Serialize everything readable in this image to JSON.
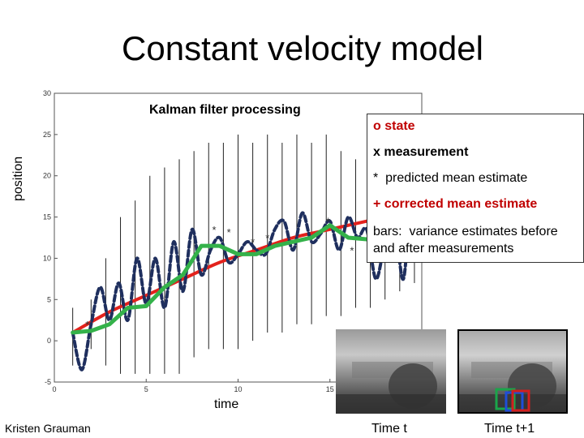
{
  "slide_title": "Constant velocity model",
  "credit": "Kristen Grauman",
  "legend": {
    "state": "o state",
    "measurement": "x measurement",
    "predicted": "*  predicted mean estimate",
    "corrected": "+ corrected mean estimate",
    "bars": "bars:  variance estimates before and after measurements"
  },
  "colors": {
    "state": "#e3221c",
    "corrected": "#34b24a",
    "measurement": "#1f2f5e",
    "legend_red": "#c00000",
    "arrow": "#e3221c",
    "box_green": "#1aa54a",
    "box_blue": "#1e4ed8",
    "box_red": "#d21f1f"
  },
  "photos": {
    "caption_t": "Time t",
    "caption_t1": "Time t+1"
  },
  "chart_data": {
    "type": "line",
    "title": "Kalman filter processing",
    "xlabel": "time",
    "ylabel": "position",
    "xlim": [
      0,
      20
    ],
    "ylim": [
      -5,
      30
    ],
    "xticks": [
      0,
      5,
      10,
      15
    ],
    "yticks": [
      -5,
      0,
      5,
      10,
      15,
      20,
      25,
      30
    ],
    "series": [
      {
        "key": "state",
        "x": [
          1,
          3,
          5,
          7,
          9,
          11,
          13,
          15,
          17,
          19,
          20
        ],
        "y": [
          1,
          3.5,
          5.5,
          7.5,
          9.5,
          11,
          12.5,
          13.5,
          14.5,
          15.5,
          16
        ]
      },
      {
        "key": "corrected",
        "x": [
          1,
          2,
          3,
          4,
          5,
          6,
          7,
          8,
          9,
          10,
          11,
          12,
          13,
          14,
          15,
          16,
          17,
          18,
          19,
          20
        ],
        "y": [
          1,
          1.2,
          2,
          4,
          4.2,
          6.5,
          8,
          11.5,
          11.5,
          10.5,
          10.5,
          11.5,
          12,
          12.5,
          14,
          12.5,
          12.3,
          12.3,
          12.8,
          14
        ]
      },
      {
        "key": "measurement",
        "x": [
          1,
          1.5,
          2,
          2.5,
          3,
          3.5,
          4,
          4.5,
          5,
          5.5,
          6,
          6.5,
          7,
          7.5,
          8,
          8.5,
          9,
          9.5,
          10,
          10.5,
          11,
          11.5,
          12,
          12.5,
          13,
          13.5,
          14,
          14.5,
          15,
          15.5,
          16,
          16.5,
          17,
          17.5,
          18,
          18.5,
          19,
          19.5,
          20
        ],
        "y": [
          1,
          -3.5,
          2,
          6.5,
          2.5,
          7,
          2.5,
          10,
          4.5,
          10,
          4,
          12,
          6,
          13.5,
          8,
          11,
          12.5,
          9.5,
          10.5,
          12,
          11,
          10.5,
          13.5,
          14.5,
          11,
          15.5,
          12,
          13,
          14.5,
          11,
          15,
          12.5,
          13.5,
          7.5,
          12,
          15,
          7.5,
          19.5,
          15
        ]
      }
    ],
    "bars": [
      {
        "x": 1,
        "low": -3,
        "high": 4
      },
      {
        "x": 2,
        "low": -1,
        "high": 5
      },
      {
        "x": 2.8,
        "low": -3,
        "high": 10
      },
      {
        "x": 3.6,
        "low": -4,
        "high": 15
      },
      {
        "x": 4.4,
        "low": -4,
        "high": 17
      },
      {
        "x": 5.2,
        "low": -4,
        "high": 20
      },
      {
        "x": 6,
        "low": -4,
        "high": 21
      },
      {
        "x": 6.8,
        "low": -4,
        "high": 22
      },
      {
        "x": 7.6,
        "low": -2,
        "high": 23
      },
      {
        "x": 8.4,
        "low": -1,
        "high": 24
      },
      {
        "x": 9.2,
        "low": -1,
        "high": 24
      },
      {
        "x": 10,
        "low": -1,
        "high": 25
      },
      {
        "x": 10.8,
        "low": 0,
        "high": 24
      },
      {
        "x": 11.6,
        "low": 1,
        "high": 25
      },
      {
        "x": 12.4,
        "low": 1,
        "high": 24
      },
      {
        "x": 13.2,
        "low": 2,
        "high": 25
      },
      {
        "x": 14,
        "low": 2,
        "high": 24
      },
      {
        "x": 14.8,
        "low": 3,
        "high": 25
      },
      {
        "x": 15.6,
        "low": 3,
        "high": 23
      },
      {
        "x": 16.4,
        "low": 4,
        "high": 22
      },
      {
        "x": 17.2,
        "low": 4,
        "high": 21
      },
      {
        "x": 18,
        "low": 5,
        "high": 20
      },
      {
        "x": 18.8,
        "low": 6,
        "high": 19
      },
      {
        "x": 19.6,
        "low": 7,
        "high": 18
      }
    ],
    "predicted_points": [
      {
        "x": 1.8,
        "y": 2
      },
      {
        "x": 8.7,
        "y": 13.5
      },
      {
        "x": 9.5,
        "y": 13.2
      },
      {
        "x": 10.8,
        "y": 12
      },
      {
        "x": 11.6,
        "y": 12.5
      },
      {
        "x": 14.9,
        "y": 14.5
      },
      {
        "x": 16.2,
        "y": 11
      },
      {
        "x": 19.5,
        "y": 20
      }
    ]
  }
}
